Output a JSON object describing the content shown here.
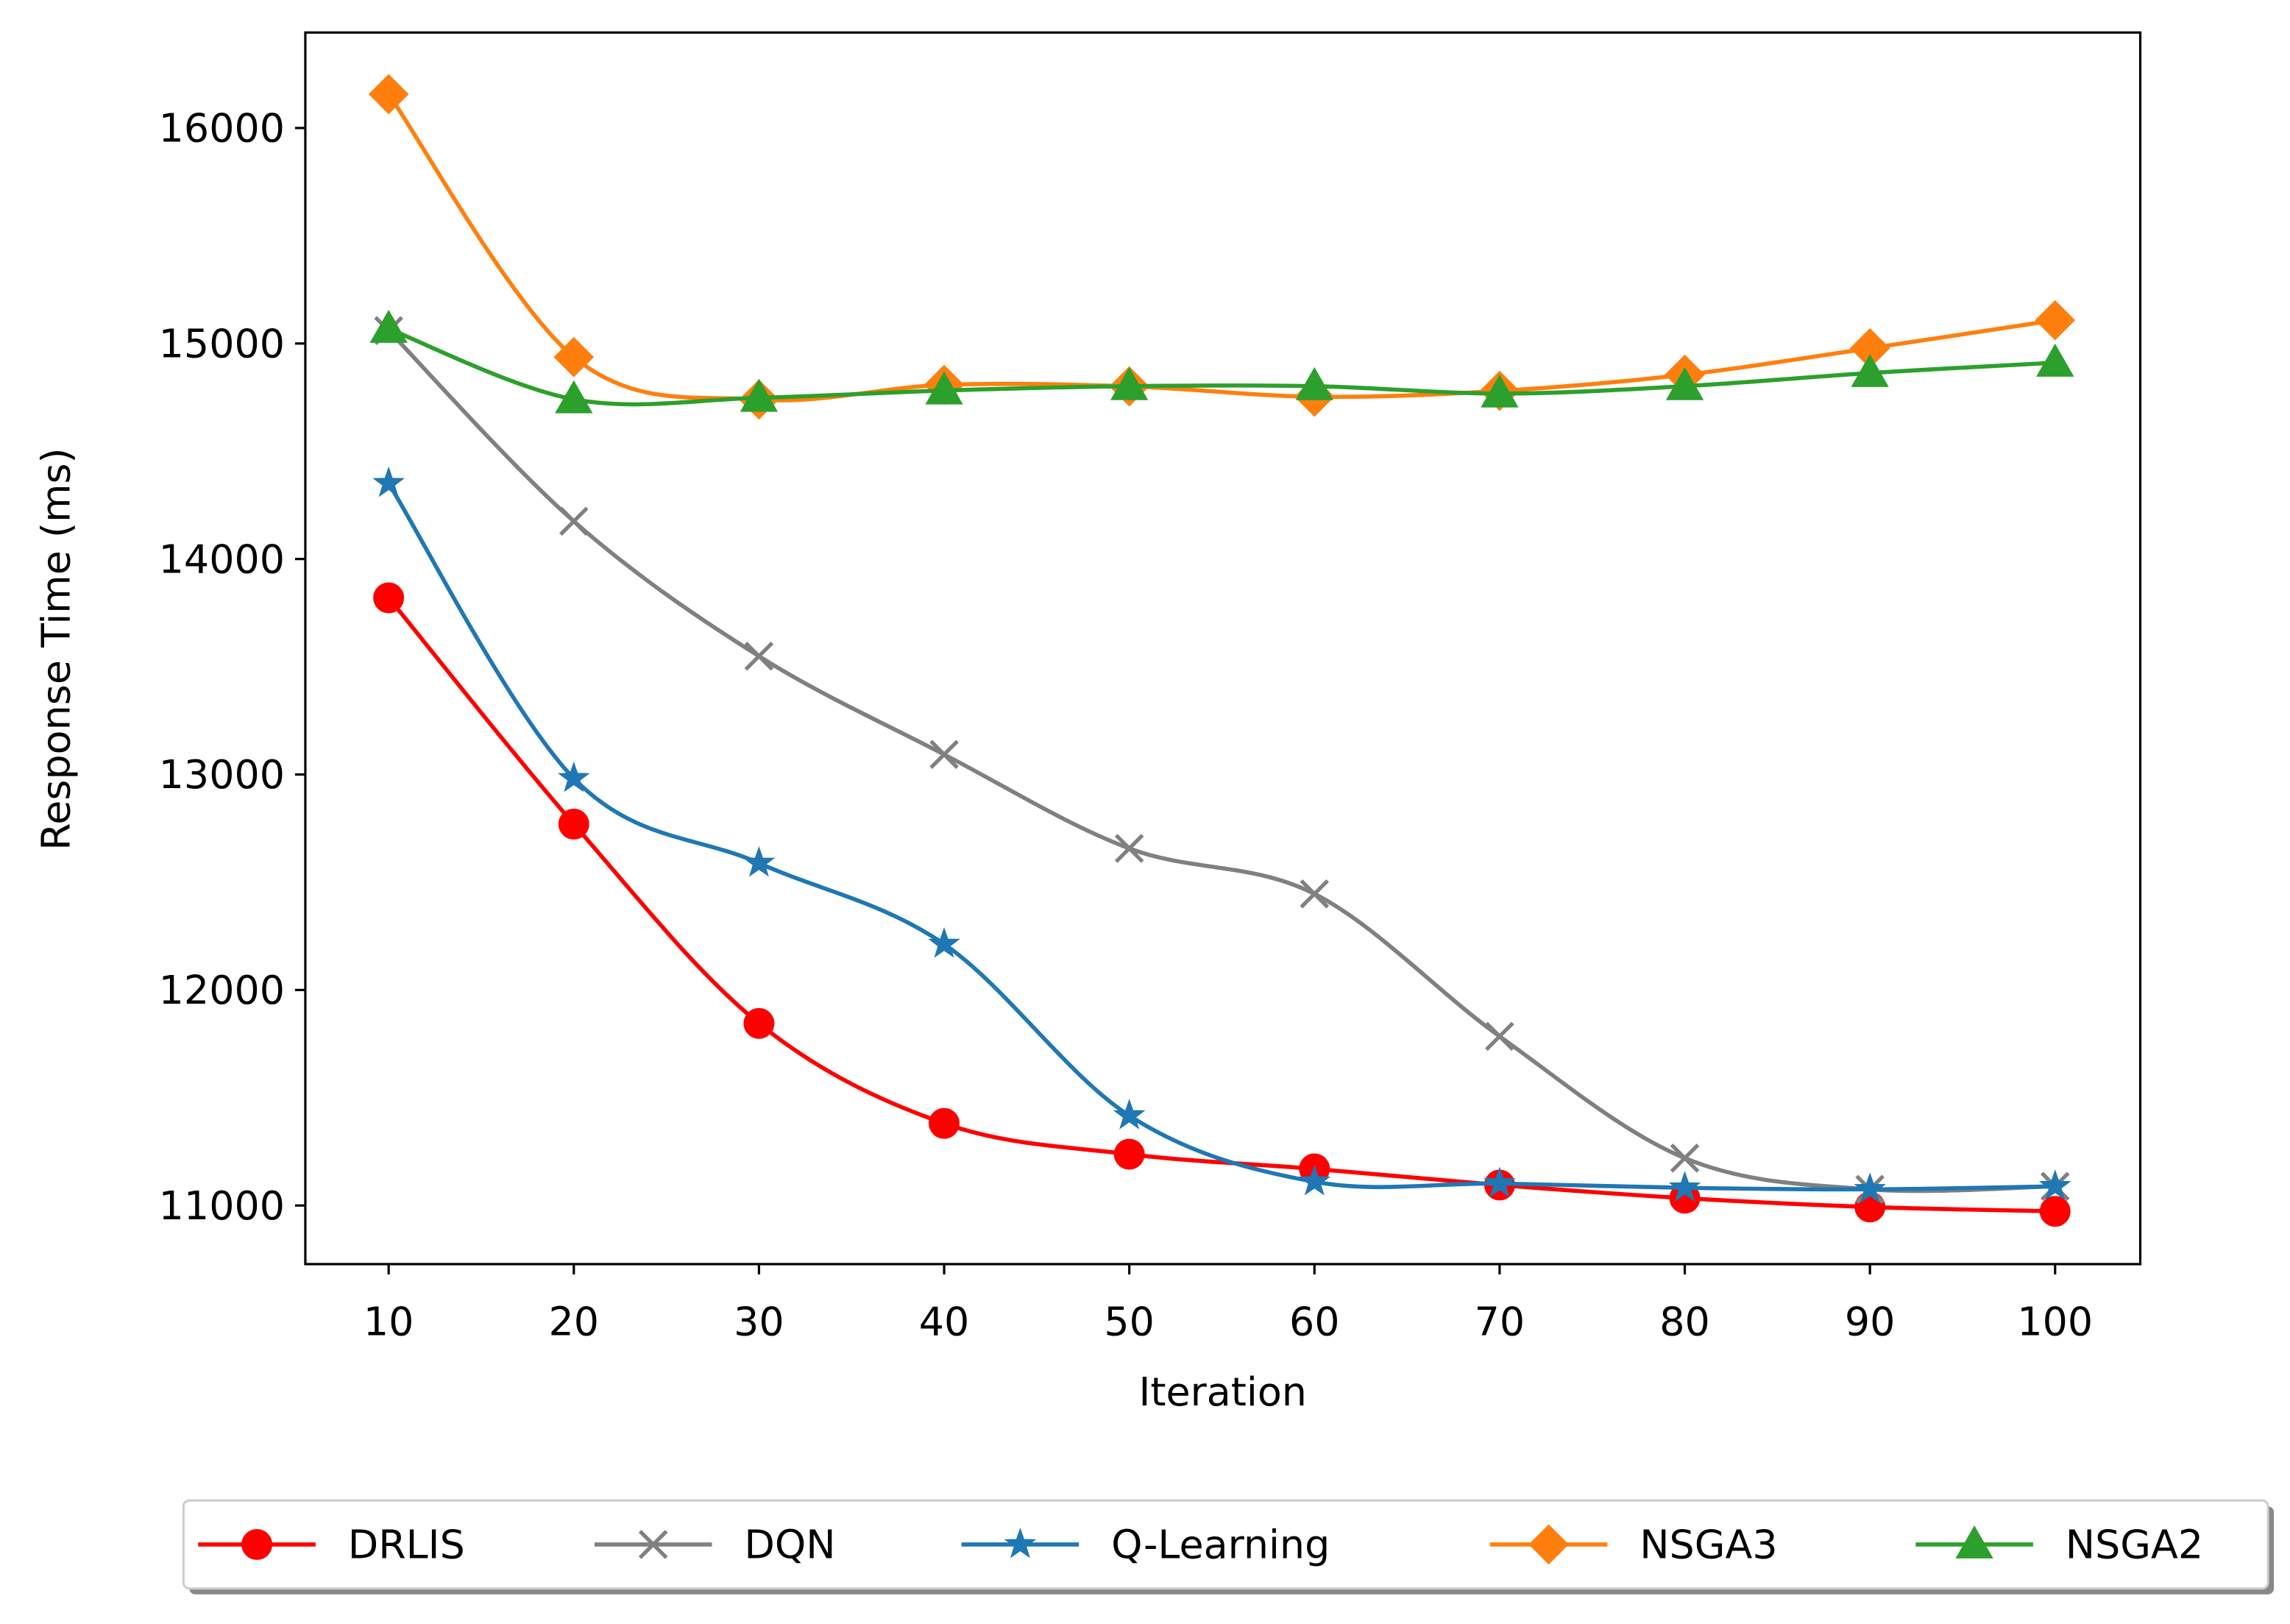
{
  "chart_data": {
    "type": "line",
    "x_label": "Iteration",
    "y_label": "Response Time (ms)",
    "x": [
      10,
      20,
      30,
      40,
      50,
      60,
      70,
      80,
      90,
      100
    ],
    "series": [
      {
        "name": "DRLIS",
        "color": "#ff0000",
        "marker": "circle",
        "values": [
          13820,
          12770,
          11845,
          11381,
          11238,
          11170,
          11095,
          11034,
          10993,
          10973
        ]
      },
      {
        "name": "DQN",
        "color": "#808080",
        "marker": "x",
        "values": [
          15060,
          14175,
          13549,
          13093,
          12657,
          12446,
          11785,
          11220,
          11075,
          11089
        ]
      },
      {
        "name": "Q-Learning",
        "color": "#1f77b4",
        "marker": "star",
        "values": [
          14351,
          12982,
          12589,
          12213,
          11417,
          11110,
          11102,
          11082,
          11075,
          11089
        ]
      },
      {
        "name": "NSGA3",
        "color": "#ff7f0e",
        "marker": "diamond",
        "values": [
          16157,
          14937,
          14740,
          14808,
          14801,
          14753,
          14780,
          14855,
          14978,
          15108
        ]
      },
      {
        "name": "NSGA2",
        "color": "#2ca02c",
        "marker": "triangle",
        "values": [
          15068,
          14741,
          14748,
          14782,
          14802,
          14802,
          14768,
          14802,
          14863,
          14911
        ]
      }
    ],
    "xlim": [
      5.5,
      104.6
    ],
    "ylim": [
      10728,
      16443
    ],
    "xticks": [
      10,
      20,
      30,
      40,
      50,
      60,
      70,
      80,
      90,
      100
    ],
    "yticks": [
      11000,
      12000,
      13000,
      14000,
      15000,
      16000
    ],
    "grid": false,
    "smooth": true,
    "legend": "bottom"
  }
}
